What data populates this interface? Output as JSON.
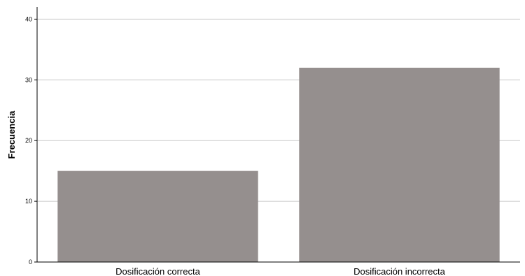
{
  "chart_data": {
    "type": "bar",
    "categories": [
      "Dosificación correcta",
      "Dosificación incorrecta"
    ],
    "values": [
      15,
      32
    ],
    "title": "",
    "xlabel": "",
    "ylabel": "Frecuencia",
    "ylim": [
      0,
      42
    ],
    "yticks": [
      0,
      10,
      20,
      30,
      40
    ],
    "grid": true,
    "bar_color": "#958f8e",
    "grid_color": "#c8c8c8",
    "axis_color": "#000000"
  }
}
